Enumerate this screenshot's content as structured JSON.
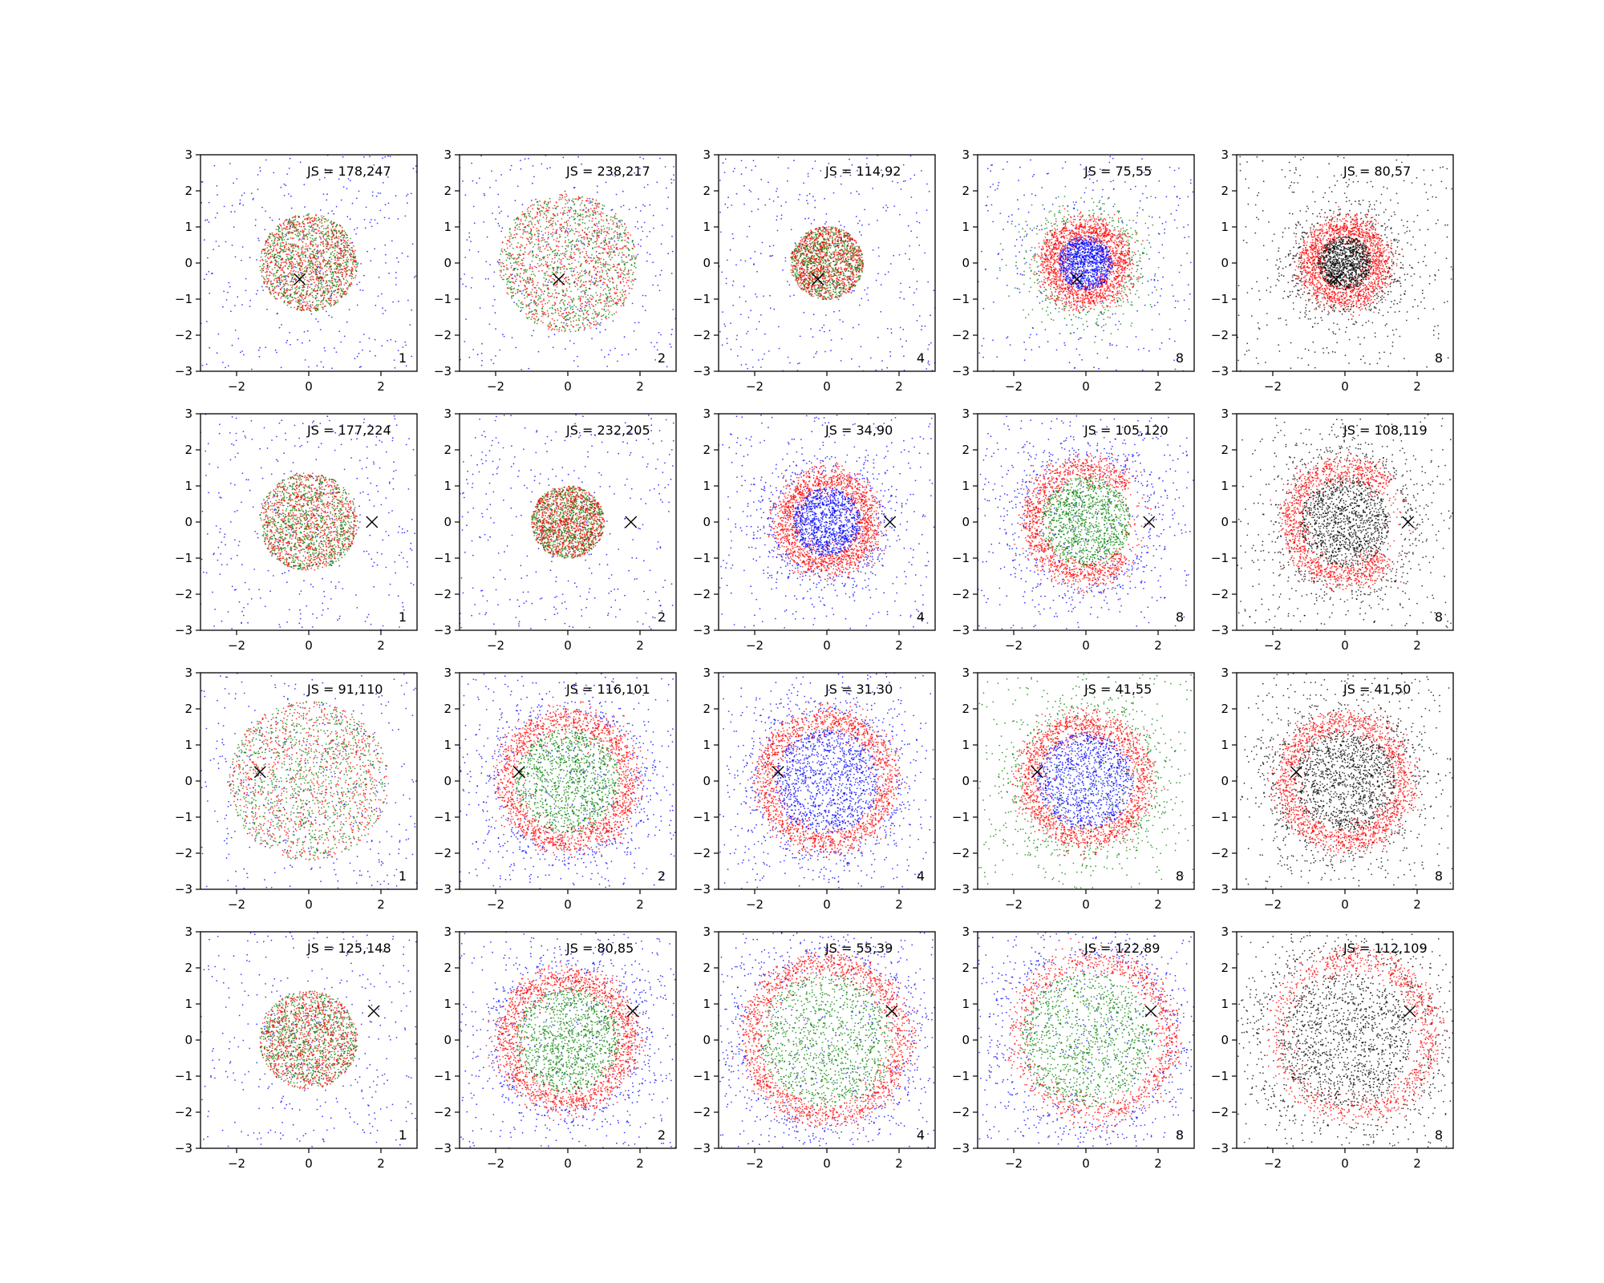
{
  "figure": {
    "layout": {
      "rows": 4,
      "cols": 5
    },
    "xlim": [
      -3,
      3
    ],
    "ylim": [
      -3,
      3
    ],
    "xticks": [
      -2,
      0,
      2
    ],
    "yticks": [
      -3,
      -2,
      -1,
      0,
      1,
      2,
      3
    ],
    "colors": {
      "blue": "#0000ff",
      "green": "#008000",
      "red": "#ff0000",
      "black": "#000000",
      "marker": "#000000"
    }
  },
  "chart_data": [
    {
      "type": "scatter",
      "row": 0,
      "col": 0,
      "js_label": "JS = 178,247",
      "corner_label": "1",
      "marker_x": -0.25,
      "marker_y": -0.45,
      "pattern": "disk",
      "scale": 1.0,
      "ring_r": 1.6,
      "inner": "green",
      "outer": "blue",
      "gap_angle": null,
      "bg": "blue"
    },
    {
      "type": "scatter",
      "row": 0,
      "col": 1,
      "js_label": "JS = 238,217",
      "corner_label": "2",
      "marker_x": -0.25,
      "marker_y": -0.45,
      "pattern": "disk",
      "scale": 1.25,
      "ring_r": 1.8,
      "inner": "green",
      "outer": "blue",
      "gap_angle": null,
      "bg": "blue"
    },
    {
      "type": "scatter",
      "row": 0,
      "col": 2,
      "js_label": "JS = 114,92",
      "corner_label": "4",
      "marker_x": -0.25,
      "marker_y": -0.45,
      "pattern": "disk",
      "scale": 0.85,
      "ring_r": 1.4,
      "inner": "green",
      "outer": "blue",
      "gap_angle": null,
      "bg": "blue"
    },
    {
      "type": "scatter",
      "row": 0,
      "col": 3,
      "js_label": "JS = 75,55",
      "corner_label": "8",
      "marker_x": -0.25,
      "marker_y": -0.45,
      "pattern": "ring",
      "scale": 1.0,
      "ring_r": 1.0,
      "inner": "blue",
      "outer": "green",
      "gap_angle": null,
      "bg": "blue"
    },
    {
      "type": "scatter",
      "row": 0,
      "col": 4,
      "js_label": "JS = 80,57",
      "corner_label": "8",
      "marker_x": -0.25,
      "marker_y": -0.45,
      "pattern": "ring",
      "scale": 1.0,
      "ring_r": 1.0,
      "inner": "black",
      "outer": "black",
      "gap_angle": null,
      "bg": "black"
    },
    {
      "type": "scatter",
      "row": 1,
      "col": 0,
      "js_label": "JS = 177,224",
      "corner_label": "1",
      "marker_x": 1.75,
      "marker_y": 0.0,
      "pattern": "disk",
      "scale": 1.0,
      "ring_r": 1.6,
      "inner": "green",
      "outer": "blue",
      "gap_angle": null,
      "bg": "blue"
    },
    {
      "type": "scatter",
      "row": 1,
      "col": 1,
      "js_label": "JS = 232,205",
      "corner_label": "2",
      "marker_x": 1.75,
      "marker_y": 0.0,
      "pattern": "disk",
      "scale": 0.85,
      "ring_r": 1.4,
      "inner": "green",
      "outer": "blue",
      "gap_angle": null,
      "bg": "blue"
    },
    {
      "type": "scatter",
      "row": 1,
      "col": 2,
      "js_label": "JS = 34,90",
      "corner_label": "4",
      "marker_x": 1.75,
      "marker_y": 0.0,
      "pattern": "ring",
      "scale": 1.0,
      "ring_r": 1.2,
      "inner": "blue",
      "outer": "blue",
      "gap_angle": null,
      "bg": "blue"
    },
    {
      "type": "scatter",
      "row": 1,
      "col": 3,
      "js_label": "JS = 105,120",
      "corner_label": "8",
      "marker_x": 1.75,
      "marker_y": 0.0,
      "pattern": "ring",
      "scale": 1.0,
      "ring_r": 1.5,
      "inner": "green",
      "outer": "blue",
      "gap_angle": 0,
      "bg": "blue"
    },
    {
      "type": "scatter",
      "row": 1,
      "col": 4,
      "js_label": "JS = 108,119",
      "corner_label": "8",
      "marker_x": 1.75,
      "marker_y": 0.0,
      "pattern": "ring",
      "scale": 1.0,
      "ring_r": 1.5,
      "inner": "black",
      "outer": "black",
      "gap_angle": 0,
      "bg": "black"
    },
    {
      "type": "scatter",
      "row": 2,
      "col": 0,
      "js_label": "JS = 91,110",
      "corner_label": "1",
      "marker_x": -1.35,
      "marker_y": 0.25,
      "pattern": "disk",
      "scale": 1.3,
      "ring_r": 2.0,
      "inner": "green",
      "outer": "blue",
      "gap_angle": null,
      "bg": "blue"
    },
    {
      "type": "scatter",
      "row": 2,
      "col": 1,
      "js_label": "JS = 116,101",
      "corner_label": "2",
      "marker_x": -1.35,
      "marker_y": 0.25,
      "pattern": "ring",
      "scale": 1.0,
      "ring_r": 1.7,
      "inner": "green",
      "outer": "blue",
      "gap_angle": null,
      "bg": "blue"
    },
    {
      "type": "scatter",
      "row": 2,
      "col": 2,
      "js_label": "JS = 31,30",
      "corner_label": "4",
      "marker_x": -1.35,
      "marker_y": 0.25,
      "pattern": "ring",
      "scale": 1.0,
      "ring_r": 1.7,
      "inner": "blue",
      "outer": "blue",
      "gap_angle": null,
      "bg": "blue"
    },
    {
      "type": "scatter",
      "row": 2,
      "col": 3,
      "js_label": "JS = 41,55",
      "corner_label": "8",
      "marker_x": -1.35,
      "marker_y": 0.25,
      "pattern": "ring",
      "scale": 1.0,
      "ring_r": 1.6,
      "inner": "blue",
      "outer": "green",
      "gap_angle": null,
      "bg": "green"
    },
    {
      "type": "scatter",
      "row": 2,
      "col": 4,
      "js_label": "JS = 41,50",
      "corner_label": "8",
      "marker_x": -1.35,
      "marker_y": 0.25,
      "pattern": "ring",
      "scale": 1.0,
      "ring_r": 1.65,
      "inner": "black",
      "outer": "black",
      "gap_angle": null,
      "bg": "black"
    },
    {
      "type": "scatter",
      "row": 3,
      "col": 0,
      "js_label": "JS = 125,148",
      "corner_label": "1",
      "marker_x": 1.8,
      "marker_y": 0.8,
      "pattern": "disk",
      "scale": 1.0,
      "ring_r": 1.6,
      "inner": "green",
      "outer": "blue",
      "gap_angle": null,
      "bg": "blue"
    },
    {
      "type": "scatter",
      "row": 3,
      "col": 1,
      "js_label": "JS = 80,85",
      "corner_label": "2",
      "marker_x": 1.8,
      "marker_y": 0.8,
      "pattern": "ring",
      "scale": 1.0,
      "ring_r": 1.7,
      "inner": "green",
      "outer": "blue",
      "gap_angle": null,
      "bg": "blue"
    },
    {
      "type": "scatter",
      "row": 3,
      "col": 2,
      "js_label": "JS = 55,39",
      "corner_label": "4",
      "marker_x": 1.8,
      "marker_y": 0.8,
      "pattern": "ring",
      "scale": 1.0,
      "ring_r": 2.1,
      "inner": "green",
      "outer": "blue",
      "gap_angle": null,
      "bg": "blue"
    },
    {
      "type": "scatter",
      "row": 3,
      "col": 3,
      "js_label": "JS = 122,89",
      "corner_label": "8",
      "marker_x": 1.8,
      "marker_y": 0.8,
      "pattern": "crescent",
      "scale": 1.0,
      "ring_r": 2.1,
      "inner": "green",
      "outer": "blue",
      "gap_angle": 0.4,
      "bg": "blue"
    },
    {
      "type": "scatter",
      "row": 3,
      "col": 4,
      "js_label": "JS = 112,109",
      "corner_label": "8",
      "marker_x": 1.8,
      "marker_y": 0.8,
      "pattern": "crescent",
      "scale": 1.0,
      "ring_r": 2.1,
      "inner": "black",
      "outer": "black",
      "gap_angle": 0.4,
      "bg": "black"
    }
  ]
}
